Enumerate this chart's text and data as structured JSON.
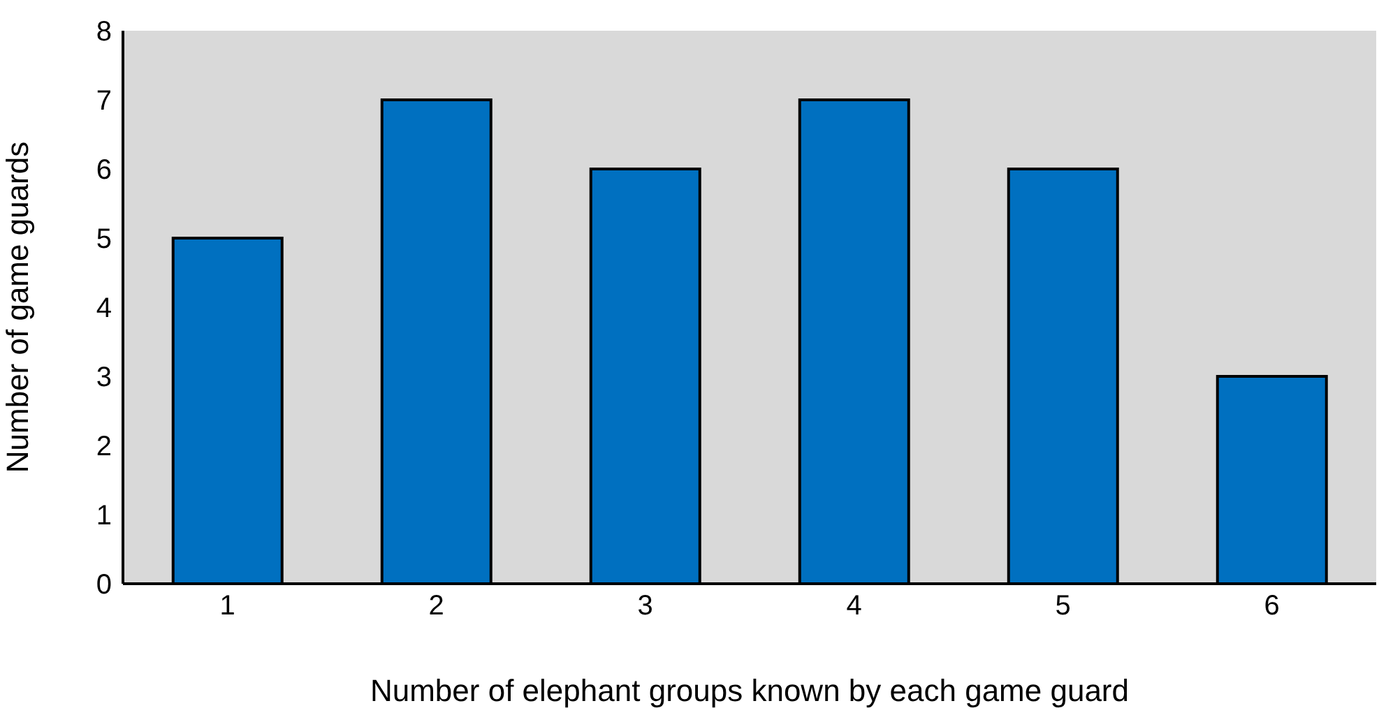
{
  "chart_data": {
    "type": "bar",
    "xlabel": "Number of elephant groups known by each game guard",
    "ylabel": "Number of game guards",
    "categories": [
      "1",
      "2",
      "3",
      "4",
      "5",
      "6"
    ],
    "values": [
      5,
      7,
      6,
      7,
      6,
      3
    ],
    "color": "#0070c0",
    "ylim": [
      0,
      8
    ],
    "yticks": [
      0,
      1,
      2,
      3,
      4,
      5,
      6,
      7,
      8
    ],
    "grid": false,
    "legend": false
  }
}
